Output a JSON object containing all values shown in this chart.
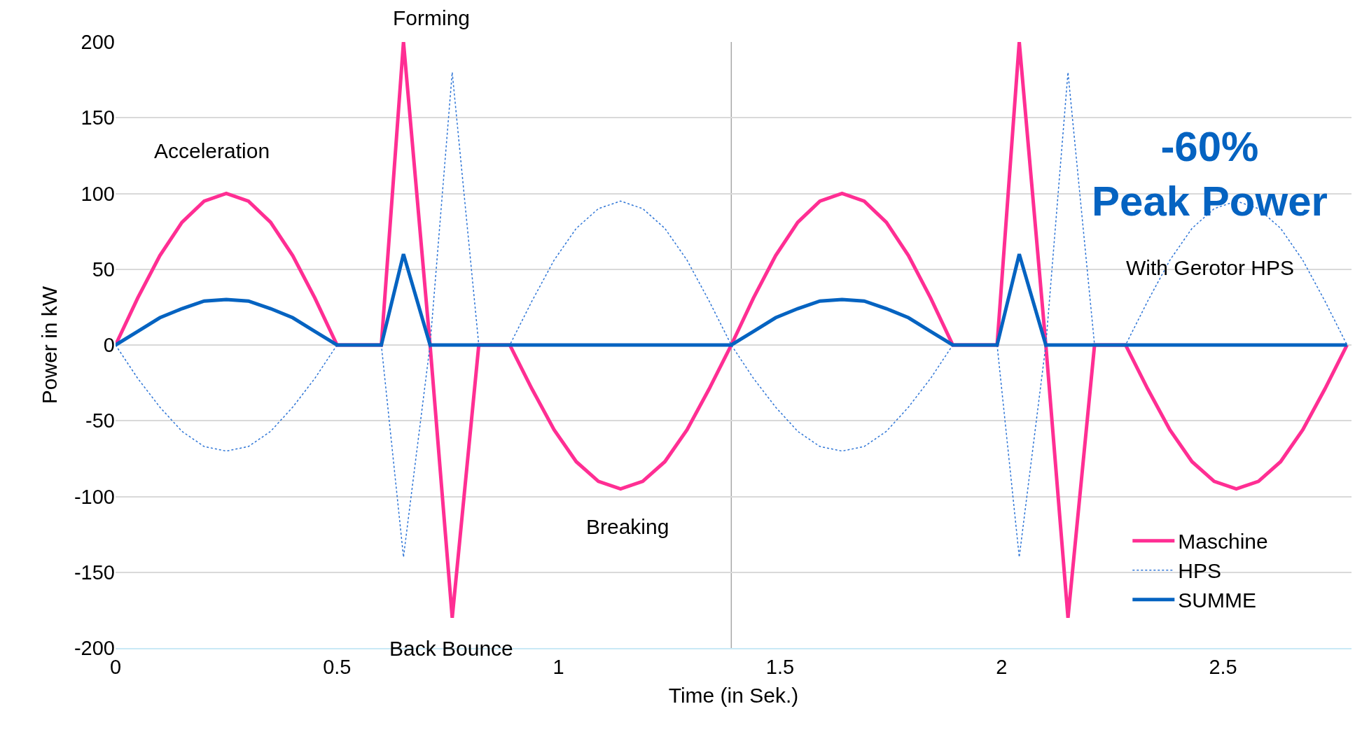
{
  "chart_data": {
    "type": "line",
    "xlabel": "Time (in Sek.)",
    "ylabel": "Power in kW",
    "x": [
      0,
      0.05,
      0.1,
      0.15,
      0.2,
      0.25,
      0.3,
      0.35,
      0.4,
      0.45,
      0.5,
      0.6,
      0.65,
      0.71,
      0.76,
      0.82,
      0.89,
      0.94,
      0.99,
      1.04,
      1.09,
      1.14,
      1.19,
      1.24,
      1.29,
      1.34,
      1.39,
      1.44,
      1.49,
      1.54,
      1.59,
      1.64,
      1.69,
      1.74,
      1.79,
      1.84,
      1.89,
      1.99,
      2.04,
      2.1,
      2.15,
      2.21,
      2.28,
      2.33,
      2.38,
      2.43,
      2.48,
      2.53,
      2.58,
      2.63,
      2.68,
      2.73,
      2.78
    ],
    "series": [
      {
        "name": "Maschine",
        "color": "#ff2e93",
        "line_style": "solid",
        "values": [
          0,
          31,
          59,
          81,
          95,
          100,
          95,
          81,
          59,
          31,
          0,
          0,
          200,
          0,
          -180,
          0,
          0,
          -29,
          -56,
          -77,
          -90,
          -95,
          -90,
          -77,
          -56,
          -29,
          0,
          31,
          59,
          81,
          95,
          100,
          95,
          81,
          59,
          31,
          0,
          0,
          200,
          0,
          -180,
          0,
          0,
          -29,
          -56,
          -77,
          -90,
          -95,
          -90,
          -77,
          -56,
          -29,
          0
        ]
      },
      {
        "name": "HPS",
        "color": "#2e75d6",
        "line_style": "dotted",
        "values": [
          0,
          -22,
          -41,
          -57,
          -67,
          -70,
          -67,
          -57,
          -41,
          -22,
          0,
          0,
          -140,
          0,
          180,
          0,
          0,
          29,
          56,
          77,
          90,
          95,
          90,
          77,
          56,
          29,
          0,
          -22,
          -41,
          -57,
          -67,
          -70,
          -67,
          -57,
          -41,
          -22,
          0,
          0,
          -140,
          0,
          180,
          0,
          0,
          29,
          56,
          77,
          90,
          95,
          90,
          77,
          56,
          29,
          0
        ]
      },
      {
        "name": "SUMME",
        "color": "#0563c1",
        "line_style": "solid",
        "values": [
          0,
          9,
          18,
          24,
          29,
          30,
          29,
          24,
          18,
          9,
          0,
          0,
          60,
          0,
          0,
          0,
          0,
          0,
          0,
          0,
          0,
          0,
          0,
          0,
          0,
          0,
          0,
          9,
          18,
          24,
          29,
          30,
          29,
          24,
          18,
          9,
          0,
          0,
          60,
          0,
          0,
          0,
          0,
          0,
          0,
          0,
          0,
          0,
          0,
          0,
          0,
          0,
          0
        ]
      }
    ],
    "xlim": [
      0,
      2.79
    ],
    "xticks": [
      0,
      0.5,
      1,
      1.5,
      2,
      2.5
    ],
    "ylim": [
      -200,
      200
    ],
    "yticks": [
      -200,
      -150,
      -100,
      -50,
      0,
      50,
      100,
      150,
      200
    ],
    "grid": "y",
    "legend": "bottom right",
    "ref_lines": [
      {
        "axis": "x",
        "value": 1.39,
        "color": "#a6a6a6"
      }
    ],
    "annotations": [
      "Forming",
      "Acceleration",
      "Breaking",
      "Back Bounce",
      "-60%\nPeak Power",
      "With Gerotor HPS"
    ]
  }
}
